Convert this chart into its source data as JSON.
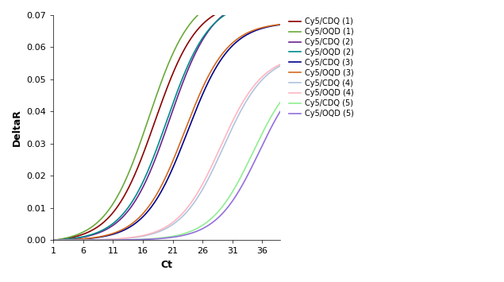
{
  "title": "",
  "xlabel": "Ct",
  "ylabel": "DeltaR",
  "xlim": [
    1,
    39
  ],
  "ylim": [
    0,
    0.07
  ],
  "xticks": [
    1,
    6,
    11,
    16,
    21,
    26,
    31,
    36
  ],
  "yticks": [
    0,
    0.01,
    0.02,
    0.03,
    0.04,
    0.05,
    0.06,
    0.07
  ],
  "series": [
    {
      "label": "Cy5/CDQ (1)",
      "color": "#8B0000",
      "midpoint": 18.0,
      "steepness": 0.28,
      "plateau": 0.075
    },
    {
      "label": "Cy5/OQD (1)",
      "color": "#6AAA3A",
      "midpoint": 17.0,
      "steepness": 0.28,
      "plateau": 0.078
    },
    {
      "label": "Cy5/CDQ (2)",
      "color": "#6B238E",
      "midpoint": 20.5,
      "steepness": 0.28,
      "plateau": 0.076
    },
    {
      "label": "Cy5/OQD (2)",
      "color": "#008B8B",
      "midpoint": 20.0,
      "steepness": 0.28,
      "plateau": 0.075
    },
    {
      "label": "Cy5/CDQ (3)",
      "color": "#00008B",
      "midpoint": 23.5,
      "steepness": 0.28,
      "plateau": 0.068
    },
    {
      "label": "Cy5/OQD (3)",
      "color": "#D2691E",
      "midpoint": 23.0,
      "steepness": 0.28,
      "plateau": 0.068
    },
    {
      "label": "Cy5/CDQ (4)",
      "color": "#B0C4DE",
      "midpoint": 29.5,
      "steepness": 0.28,
      "plateau": 0.058
    },
    {
      "label": "Cy5/OQD (4)",
      "color": "#FFB6C1",
      "midpoint": 29.0,
      "steepness": 0.28,
      "plateau": 0.058
    },
    {
      "label": "Cy5/CDQ (5)",
      "color": "#90EE90",
      "midpoint": 34.5,
      "steepness": 0.28,
      "plateau": 0.055
    },
    {
      "label": "Cy5/OQD (5)",
      "color": "#9370DB",
      "midpoint": 35.5,
      "steepness": 0.28,
      "plateau": 0.055
    }
  ]
}
